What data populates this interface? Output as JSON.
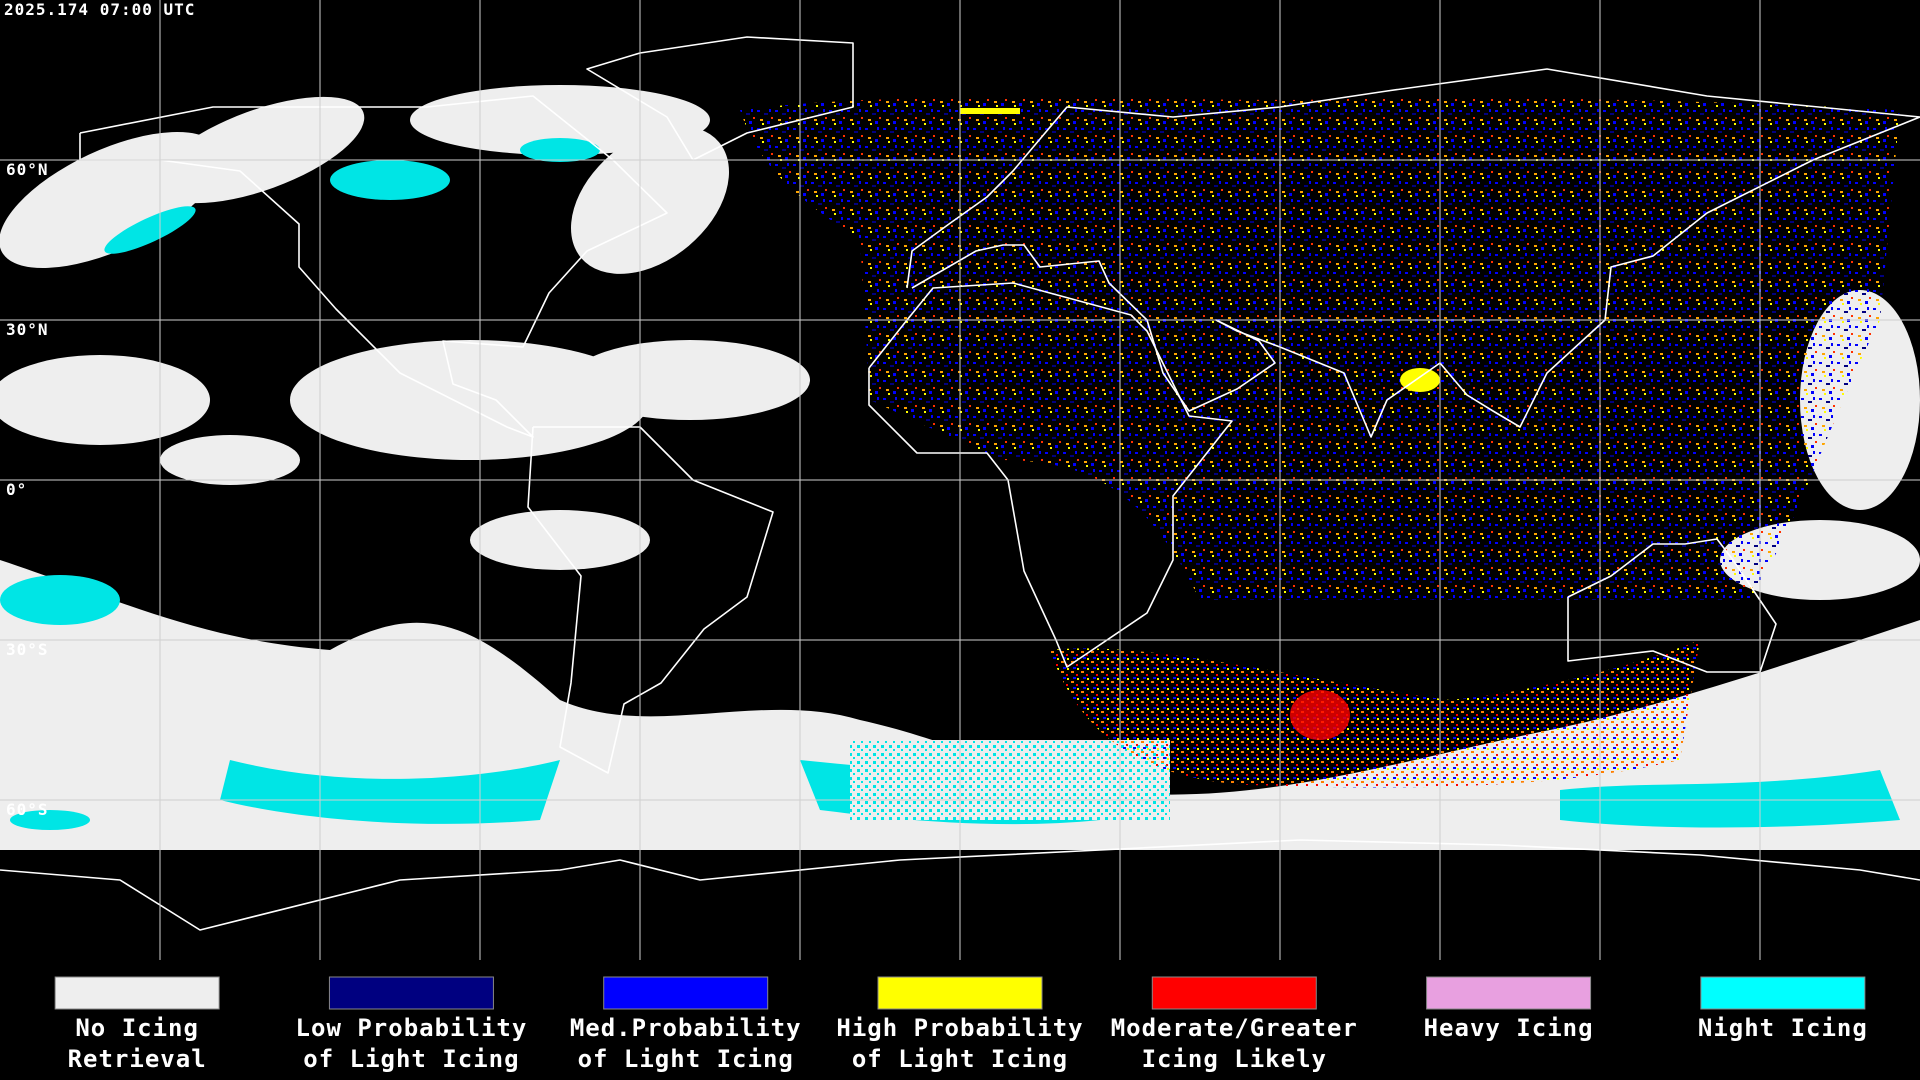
{
  "header": {
    "title": "2025.174 07:00 UTC"
  },
  "latitude_labels": [
    "60°N",
    "30°N",
    "0°",
    "30°S",
    "60°S"
  ],
  "legend": {
    "items": [
      {
        "lines": [
          "No Icing",
          "Retrieval"
        ],
        "color": "#eeeeee"
      },
      {
        "lines": [
          "Low Probability",
          "of Light Icing"
        ],
        "color": "#000080"
      },
      {
        "lines": [
          "Med.Probability",
          "of Light Icing"
        ],
        "color": "#0000ff"
      },
      {
        "lines": [
          "High Probability",
          "of Light Icing"
        ],
        "color": "#ffff00"
      },
      {
        "lines": [
          "Moderate/Greater",
          "Icing Likely"
        ],
        "color": "#ff0000"
      },
      {
        "lines": [
          "Heavy Icing"
        ],
        "color": "#e8a0e0"
      },
      {
        "lines": [
          "Night Icing"
        ],
        "color": "#00ffff"
      }
    ]
  }
}
